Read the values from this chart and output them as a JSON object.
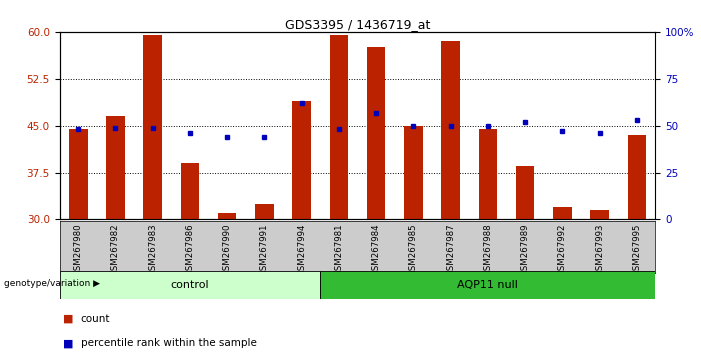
{
  "title": "GDS3395 / 1436719_at",
  "samples": [
    "GSM267980",
    "GSM267982",
    "GSM267983",
    "GSM267986",
    "GSM267990",
    "GSM267991",
    "GSM267994",
    "GSM267981",
    "GSM267984",
    "GSM267985",
    "GSM267987",
    "GSM267988",
    "GSM267989",
    "GSM267992",
    "GSM267993",
    "GSM267995"
  ],
  "counts": [
    44.5,
    46.5,
    59.5,
    39.0,
    31.0,
    32.5,
    49.0,
    59.5,
    57.5,
    45.0,
    58.5,
    44.5,
    38.5,
    32.0,
    31.5,
    43.5
  ],
  "percentile_ranks": [
    48,
    49,
    49,
    46,
    44,
    44,
    62,
    48,
    57,
    50,
    50,
    50,
    52,
    47,
    46,
    53
  ],
  "n_control": 7,
  "n_aqp11": 9,
  "ylim_left": [
    30,
    60
  ],
  "ylim_right": [
    0,
    100
  ],
  "yticks_left": [
    30,
    37.5,
    45,
    52.5,
    60
  ],
  "yticks_right": [
    0,
    25,
    50,
    75,
    100
  ],
  "ytick_labels_right": [
    "0",
    "25",
    "50",
    "75",
    "100%"
  ],
  "bar_color": "#bb2200",
  "dot_color": "#0000bb",
  "control_bg": "#ccffcc",
  "aqp11_bg": "#33bb33",
  "tick_bg": "#cccccc",
  "axis_color_left": "#bb2200",
  "axis_color_right": "#0000bb",
  "gridline_y": [
    37.5,
    45.0,
    52.5
  ],
  "bar_bottom": 30,
  "bar_width": 0.5,
  "legend_count_color": "#bb2200",
  "legend_pct_color": "#0000bb"
}
